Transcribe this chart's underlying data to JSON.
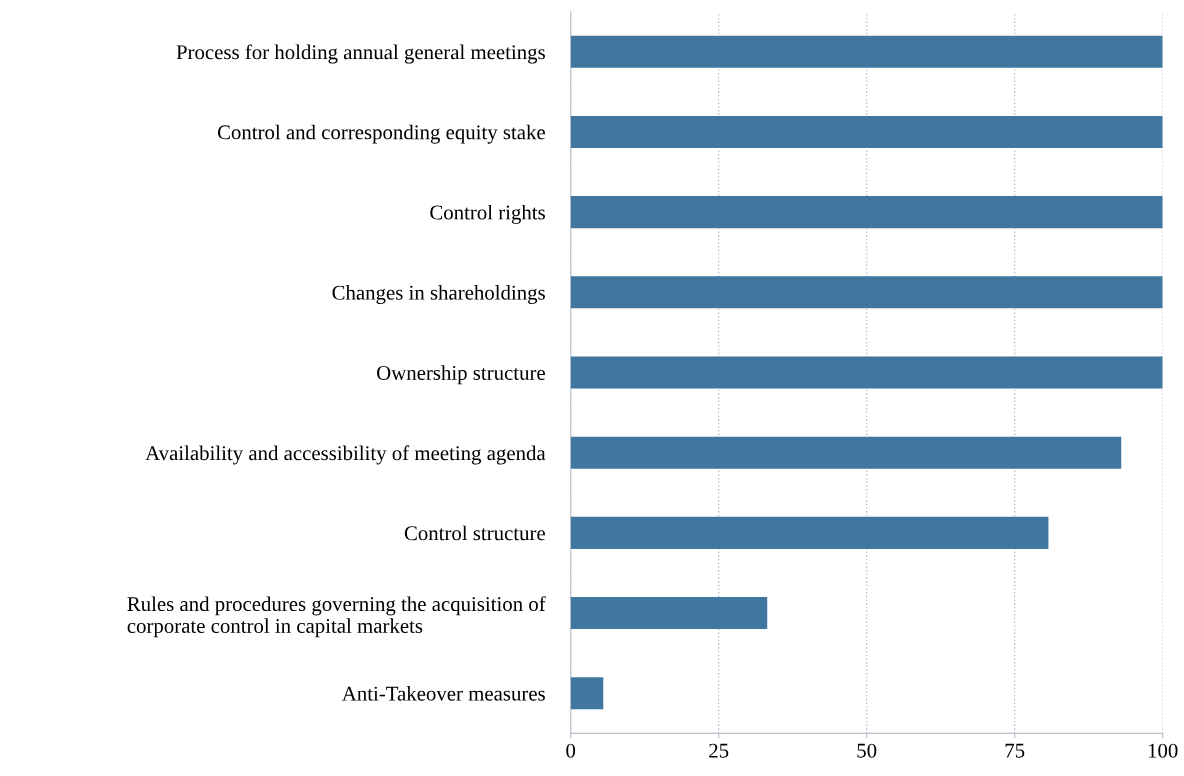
{
  "chart_data": {
    "type": "bar",
    "orientation": "horizontal",
    "categories": [
      "Process for holding annual general meetings",
      "Control and corresponding equity stake",
      "Control rights",
      "Changes in shareholdings",
      "Ownership structure",
      "Availability and accessibility of meeting agenda",
      "Control structure",
      "Rules and procedures governing the acquisition of\ncorporate control in capital markets",
      "Anti-Takeover measures"
    ],
    "values": [
      100,
      100,
      100,
      100,
      100,
      93,
      80.7,
      33.2,
      5.5
    ],
    "color": "#41779f",
    "xlim": [
      0,
      100
    ],
    "xticks": [
      0,
      25,
      50,
      75,
      100
    ],
    "grid": "x"
  }
}
